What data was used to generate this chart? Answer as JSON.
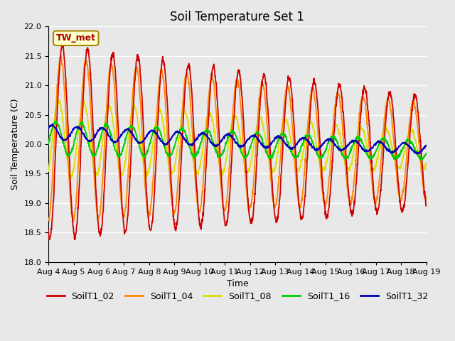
{
  "title": "Soil Temperature Set 1",
  "ylabel": "Soil Temperature (C)",
  "xlabel": "Time",
  "ylim": [
    18.0,
    22.0
  ],
  "yticks": [
    18.0,
    18.5,
    19.0,
    19.5,
    20.0,
    20.5,
    21.0,
    21.5,
    22.0
  ],
  "n_days": 15,
  "date_labels": [
    "Aug 4",
    "Aug 5",
    "Aug 6",
    "Aug 7",
    "Aug 8",
    "Aug 9",
    "Aug 10",
    "Aug 11",
    "Aug 12",
    "Aug 13",
    "Aug 14",
    "Aug 15",
    "Aug 16",
    "Aug 17",
    "Aug 18",
    "Aug 19"
  ],
  "series_colors": {
    "SoilT1_02": "#cc0000",
    "SoilT1_04": "#ff8800",
    "SoilT1_08": "#dddd00",
    "SoilT1_16": "#00cc00",
    "SoilT1_32": "#0000bb"
  },
  "annotation_text": "TW_met",
  "annotation_color": "#aa0000",
  "annotation_bg": "#ffffcc",
  "annotation_border": "#aa8800",
  "fig_bg": "#e8e8e8",
  "plot_bg": "#e8e8e8",
  "grid_color": "#ffffff",
  "linewidth": 1.3,
  "title_fontsize": 12,
  "axis_fontsize": 9,
  "tick_fontsize": 8,
  "legend_fontsize": 9
}
